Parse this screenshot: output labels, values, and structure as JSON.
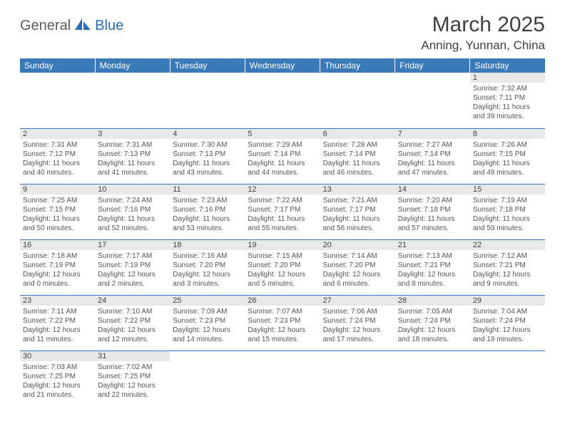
{
  "logo": {
    "part1": "General",
    "part2": "Blue",
    "icon_color": "#2a6db4"
  },
  "title": "March 2025",
  "location": "Anning, Yunnan, China",
  "colors": {
    "header_bg": "#3a7ab8",
    "header_text": "#ffffff",
    "daynum_bg": "#e8e8e8",
    "border": "#3a7ab8",
    "text": "#555555"
  },
  "weekdays": [
    "Sunday",
    "Monday",
    "Tuesday",
    "Wednesday",
    "Thursday",
    "Friday",
    "Saturday"
  ],
  "weeks": [
    [
      null,
      null,
      null,
      null,
      null,
      null,
      {
        "n": "1",
        "sr": "7:32 AM",
        "ss": "7:11 PM",
        "dh": "11",
        "dm": "39"
      }
    ],
    [
      {
        "n": "2",
        "sr": "7:31 AM",
        "ss": "7:12 PM",
        "dh": "11",
        "dm": "40"
      },
      {
        "n": "3",
        "sr": "7:31 AM",
        "ss": "7:13 PM",
        "dh": "11",
        "dm": "41"
      },
      {
        "n": "4",
        "sr": "7:30 AM",
        "ss": "7:13 PM",
        "dh": "11",
        "dm": "43"
      },
      {
        "n": "5",
        "sr": "7:29 AM",
        "ss": "7:14 PM",
        "dh": "11",
        "dm": "44"
      },
      {
        "n": "6",
        "sr": "7:28 AM",
        "ss": "7:14 PM",
        "dh": "11",
        "dm": "46"
      },
      {
        "n": "7",
        "sr": "7:27 AM",
        "ss": "7:14 PM",
        "dh": "11",
        "dm": "47"
      },
      {
        "n": "8",
        "sr": "7:26 AM",
        "ss": "7:15 PM",
        "dh": "11",
        "dm": "49"
      }
    ],
    [
      {
        "n": "9",
        "sr": "7:25 AM",
        "ss": "7:15 PM",
        "dh": "11",
        "dm": "50"
      },
      {
        "n": "10",
        "sr": "7:24 AM",
        "ss": "7:16 PM",
        "dh": "11",
        "dm": "52"
      },
      {
        "n": "11",
        "sr": "7:23 AM",
        "ss": "7:16 PM",
        "dh": "11",
        "dm": "53"
      },
      {
        "n": "12",
        "sr": "7:22 AM",
        "ss": "7:17 PM",
        "dh": "11",
        "dm": "55"
      },
      {
        "n": "13",
        "sr": "7:21 AM",
        "ss": "7:17 PM",
        "dh": "11",
        "dm": "56"
      },
      {
        "n": "14",
        "sr": "7:20 AM",
        "ss": "7:18 PM",
        "dh": "11",
        "dm": "57"
      },
      {
        "n": "15",
        "sr": "7:19 AM",
        "ss": "7:18 PM",
        "dh": "11",
        "dm": "59"
      }
    ],
    [
      {
        "n": "16",
        "sr": "7:18 AM",
        "ss": "7:19 PM",
        "dh": "12",
        "dm": "0"
      },
      {
        "n": "17",
        "sr": "7:17 AM",
        "ss": "7:19 PM",
        "dh": "12",
        "dm": "2"
      },
      {
        "n": "18",
        "sr": "7:16 AM",
        "ss": "7:20 PM",
        "dh": "12",
        "dm": "3"
      },
      {
        "n": "19",
        "sr": "7:15 AM",
        "ss": "7:20 PM",
        "dh": "12",
        "dm": "5"
      },
      {
        "n": "20",
        "sr": "7:14 AM",
        "ss": "7:20 PM",
        "dh": "12",
        "dm": "6"
      },
      {
        "n": "21",
        "sr": "7:13 AM",
        "ss": "7:21 PM",
        "dh": "12",
        "dm": "8"
      },
      {
        "n": "22",
        "sr": "7:12 AM",
        "ss": "7:21 PM",
        "dh": "12",
        "dm": "9"
      }
    ],
    [
      {
        "n": "23",
        "sr": "7:11 AM",
        "ss": "7:22 PM",
        "dh": "12",
        "dm": "11"
      },
      {
        "n": "24",
        "sr": "7:10 AM",
        "ss": "7:22 PM",
        "dh": "12",
        "dm": "12"
      },
      {
        "n": "25",
        "sr": "7:09 AM",
        "ss": "7:23 PM",
        "dh": "12",
        "dm": "14"
      },
      {
        "n": "26",
        "sr": "7:07 AM",
        "ss": "7:23 PM",
        "dh": "12",
        "dm": "15"
      },
      {
        "n": "27",
        "sr": "7:06 AM",
        "ss": "7:24 PM",
        "dh": "12",
        "dm": "17"
      },
      {
        "n": "28",
        "sr": "7:05 AM",
        "ss": "7:24 PM",
        "dh": "12",
        "dm": "18"
      },
      {
        "n": "29",
        "sr": "7:04 AM",
        "ss": "7:24 PM",
        "dh": "12",
        "dm": "19"
      }
    ],
    [
      {
        "n": "30",
        "sr": "7:03 AM",
        "ss": "7:25 PM",
        "dh": "12",
        "dm": "21"
      },
      {
        "n": "31",
        "sr": "7:02 AM",
        "ss": "7:25 PM",
        "dh": "12",
        "dm": "22"
      },
      null,
      null,
      null,
      null,
      null
    ]
  ],
  "labels": {
    "sunrise": "Sunrise:",
    "sunset": "Sunset:",
    "daylight": "Daylight:",
    "hours": "hours",
    "and": "and",
    "minutes": "minutes."
  }
}
